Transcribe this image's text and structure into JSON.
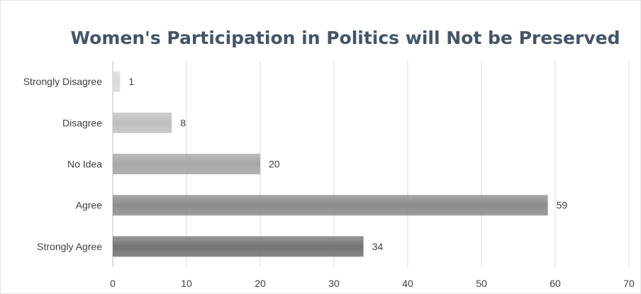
{
  "chart_data": {
    "type": "bar",
    "orientation": "horizontal",
    "title": "Women's Participation in Politics will Not be Preserved",
    "categories": [
      "Strongly Disagree",
      "Disagree",
      "No Idea",
      "Agree",
      "Strongly Agree"
    ],
    "values": [
      1,
      8,
      20,
      59,
      34
    ],
    "xlim": [
      0,
      70
    ],
    "xticks": [
      0,
      10,
      20,
      30,
      40,
      50,
      60,
      70
    ],
    "grid": true,
    "legend": "none",
    "bar_colors": [
      "#d9d9d9",
      "#bfbfbf",
      "#a6a6a6",
      "#8c8c8c",
      "#737373"
    ]
  }
}
